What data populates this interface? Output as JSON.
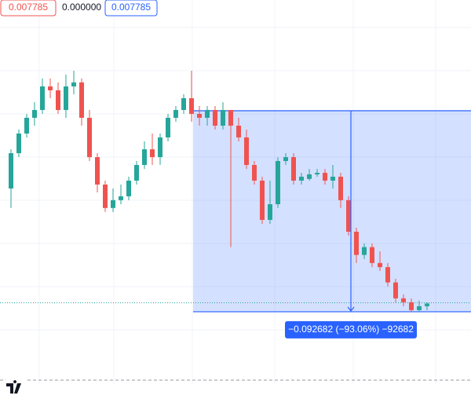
{
  "chart_data": {
    "type": "candlestick",
    "toolbar": [
      "0.007785",
      "0.000000",
      "0.007785"
    ],
    "log_scale": true,
    "ylim": [
      0.00262,
      0.433
    ],
    "up_color": "#26a69a",
    "down_color": "#ef5350",
    "open": [
      0.0355,
      0.0567,
      0.0736,
      0.0907,
      0.1006,
      0.1375,
      0.1306,
      0.1006,
      0.1375,
      0.145,
      0.0907,
      0.0538,
      0.0374,
      0.0274,
      0.0304,
      0.032,
      0.0394,
      0.0485,
      0.0597,
      0.0538,
      0.0699,
      0.0907,
      0.1006,
      0.1176,
      0.0955,
      0.0907,
      0.1006,
      0.0817,
      0.1006,
      0.0817,
      0.0699,
      0.0485,
      0.0394,
      0.0234,
      0.0288,
      0.0511,
      0.0538,
      0.0394,
      0.0403,
      0.0428,
      0.0437,
      0.0394,
      0.0415,
      0.0304,
      0.02,
      0.0147,
      0.0163,
      0.0132,
      0.0125,
      0.0102,
      0.00826,
      0.00784,
      0.00706,
      0.00744
    ],
    "high": [
      0.0597,
      0.0776,
      0.0955,
      0.1116,
      0.1528,
      0.1528,
      0.145,
      0.1609,
      0.1695,
      0.1528,
      0.1006,
      0.0567,
      0.0394,
      0.0355,
      0.0374,
      0.0415,
      0.0511,
      0.0663,
      0.0736,
      0.0736,
      0.0955,
      0.106,
      0.1239,
      0.1695,
      0.106,
      0.106,
      0.106,
      0.1116,
      0.1006,
      0.0907,
      0.0776,
      0.0511,
      0.0415,
      0.0394,
      0.0538,
      0.0567,
      0.0567,
      0.0437,
      0.046,
      0.046,
      0.046,
      0.0485,
      0.0437,
      0.032,
      0.0211,
      0.0171,
      0.0171,
      0.0154,
      0.0132,
      0.0107,
      0.00871,
      0.00826,
      0.00801,
      0.00784
    ],
    "low": [
      0.0274,
      0.0538,
      0.0699,
      0.0817,
      0.0955,
      0.1176,
      0.0955,
      0.0907,
      0.1239,
      0.0817,
      0.0511,
      0.0337,
      0.026,
      0.026,
      0.0288,
      0.0304,
      0.0374,
      0.046,
      0.0485,
      0.0485,
      0.0663,
      0.0861,
      0.0955,
      0.0861,
      0.0817,
      0.0817,
      0.0776,
      0.0776,
      0.0163,
      0.0663,
      0.046,
      0.0374,
      0.0222,
      0.0222,
      0.0274,
      0.0485,
      0.0374,
      0.0374,
      0.0394,
      0.0415,
      0.0374,
      0.0355,
      0.0274,
      0.019,
      0.0132,
      0.0139,
      0.0125,
      0.0119,
      0.00967,
      0.00784,
      0.00744,
      0.00686,
      0.00686,
      0.00706
    ],
    "close": [
      0.0567,
      0.0736,
      0.0907,
      0.1006,
      0.1375,
      0.1306,
      0.1006,
      0.1375,
      0.145,
      0.0907,
      0.0538,
      0.0374,
      0.0274,
      0.0304,
      0.032,
      0.0394,
      0.0485,
      0.0597,
      0.0538,
      0.0699,
      0.0907,
      0.1006,
      0.1176,
      0.0955,
      0.0907,
      0.1006,
      0.0817,
      0.1006,
      0.0817,
      0.0699,
      0.0485,
      0.0394,
      0.0234,
      0.0288,
      0.0511,
      0.0538,
      0.0394,
      0.0415,
      0.0428,
      0.0437,
      0.0394,
      0.0415,
      0.0304,
      0.02,
      0.0147,
      0.0163,
      0.0132,
      0.0125,
      0.0102,
      0.00826,
      0.00784,
      0.00706,
      0.00744,
      0.00771
    ],
    "last_price": 0.007785,
    "measure_from": 0.099594,
    "measure_to": 0.006912,
    "measure_label": "−0.092682 (−93.06%) −92682"
  }
}
